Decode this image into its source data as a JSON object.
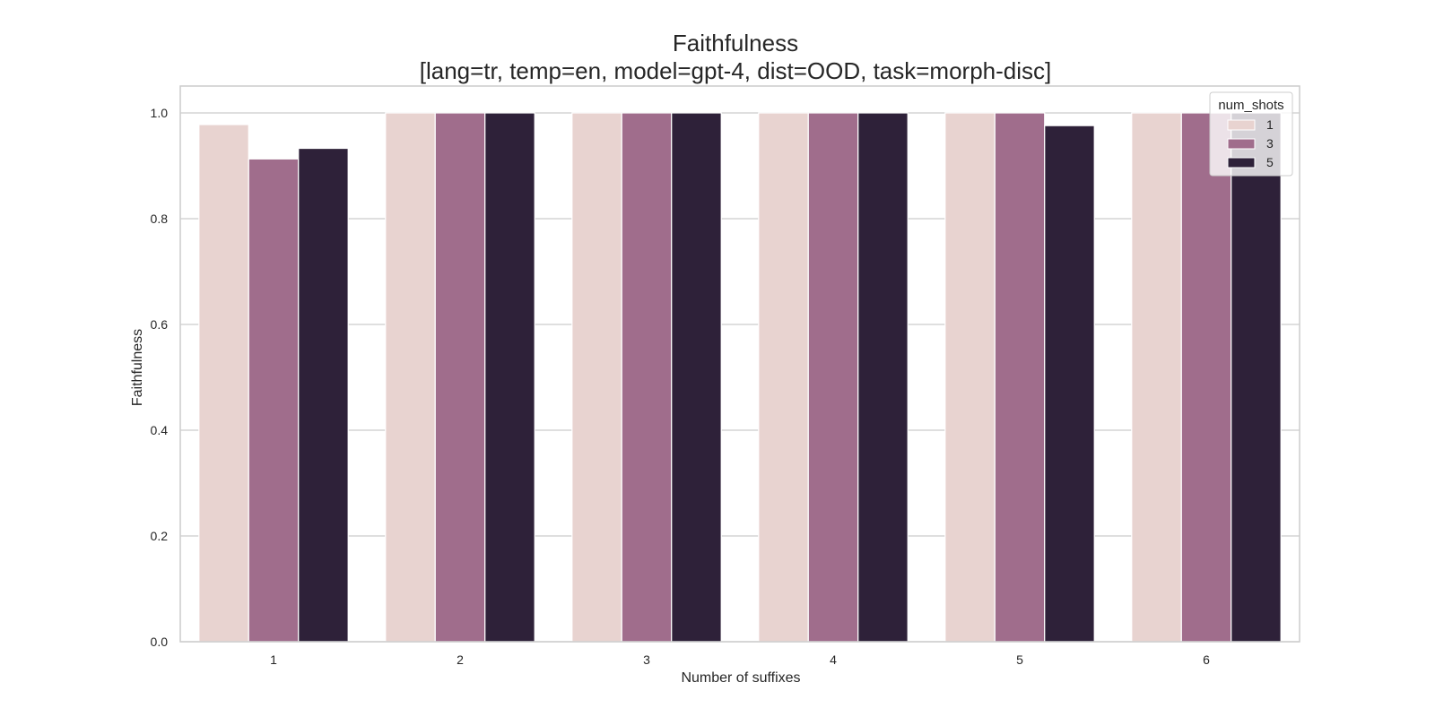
{
  "chart_data": {
    "type": "bar",
    "title": "Faithfulness",
    "subtitle": "[lang=tr, temp=en, model=gpt-4, dist=OOD, task=morph-disc]",
    "xlabel": "Number of suffixes",
    "ylabel": "Faithfulness",
    "ylim": [
      0,
      1.05
    ],
    "yticks": [
      0.0,
      0.2,
      0.4,
      0.6,
      0.8,
      1.0
    ],
    "grid": true,
    "categories": [
      "1",
      "2",
      "3",
      "4",
      "5",
      "6"
    ],
    "legend": {
      "title": "num_shots",
      "placement": "top-right"
    },
    "series": [
      {
        "name": "1",
        "color": "#e8d3d0",
        "values": [
          0.978,
          1.0,
          1.0,
          1.0,
          1.0,
          1.0
        ]
      },
      {
        "name": "3",
        "color": "#a06d8c",
        "values": [
          0.913,
          1.0,
          1.0,
          1.0,
          1.0,
          1.0
        ]
      },
      {
        "name": "5",
        "color": "#2e2139",
        "values": [
          0.933,
          1.0,
          1.0,
          1.0,
          0.976,
          1.0
        ]
      }
    ]
  }
}
